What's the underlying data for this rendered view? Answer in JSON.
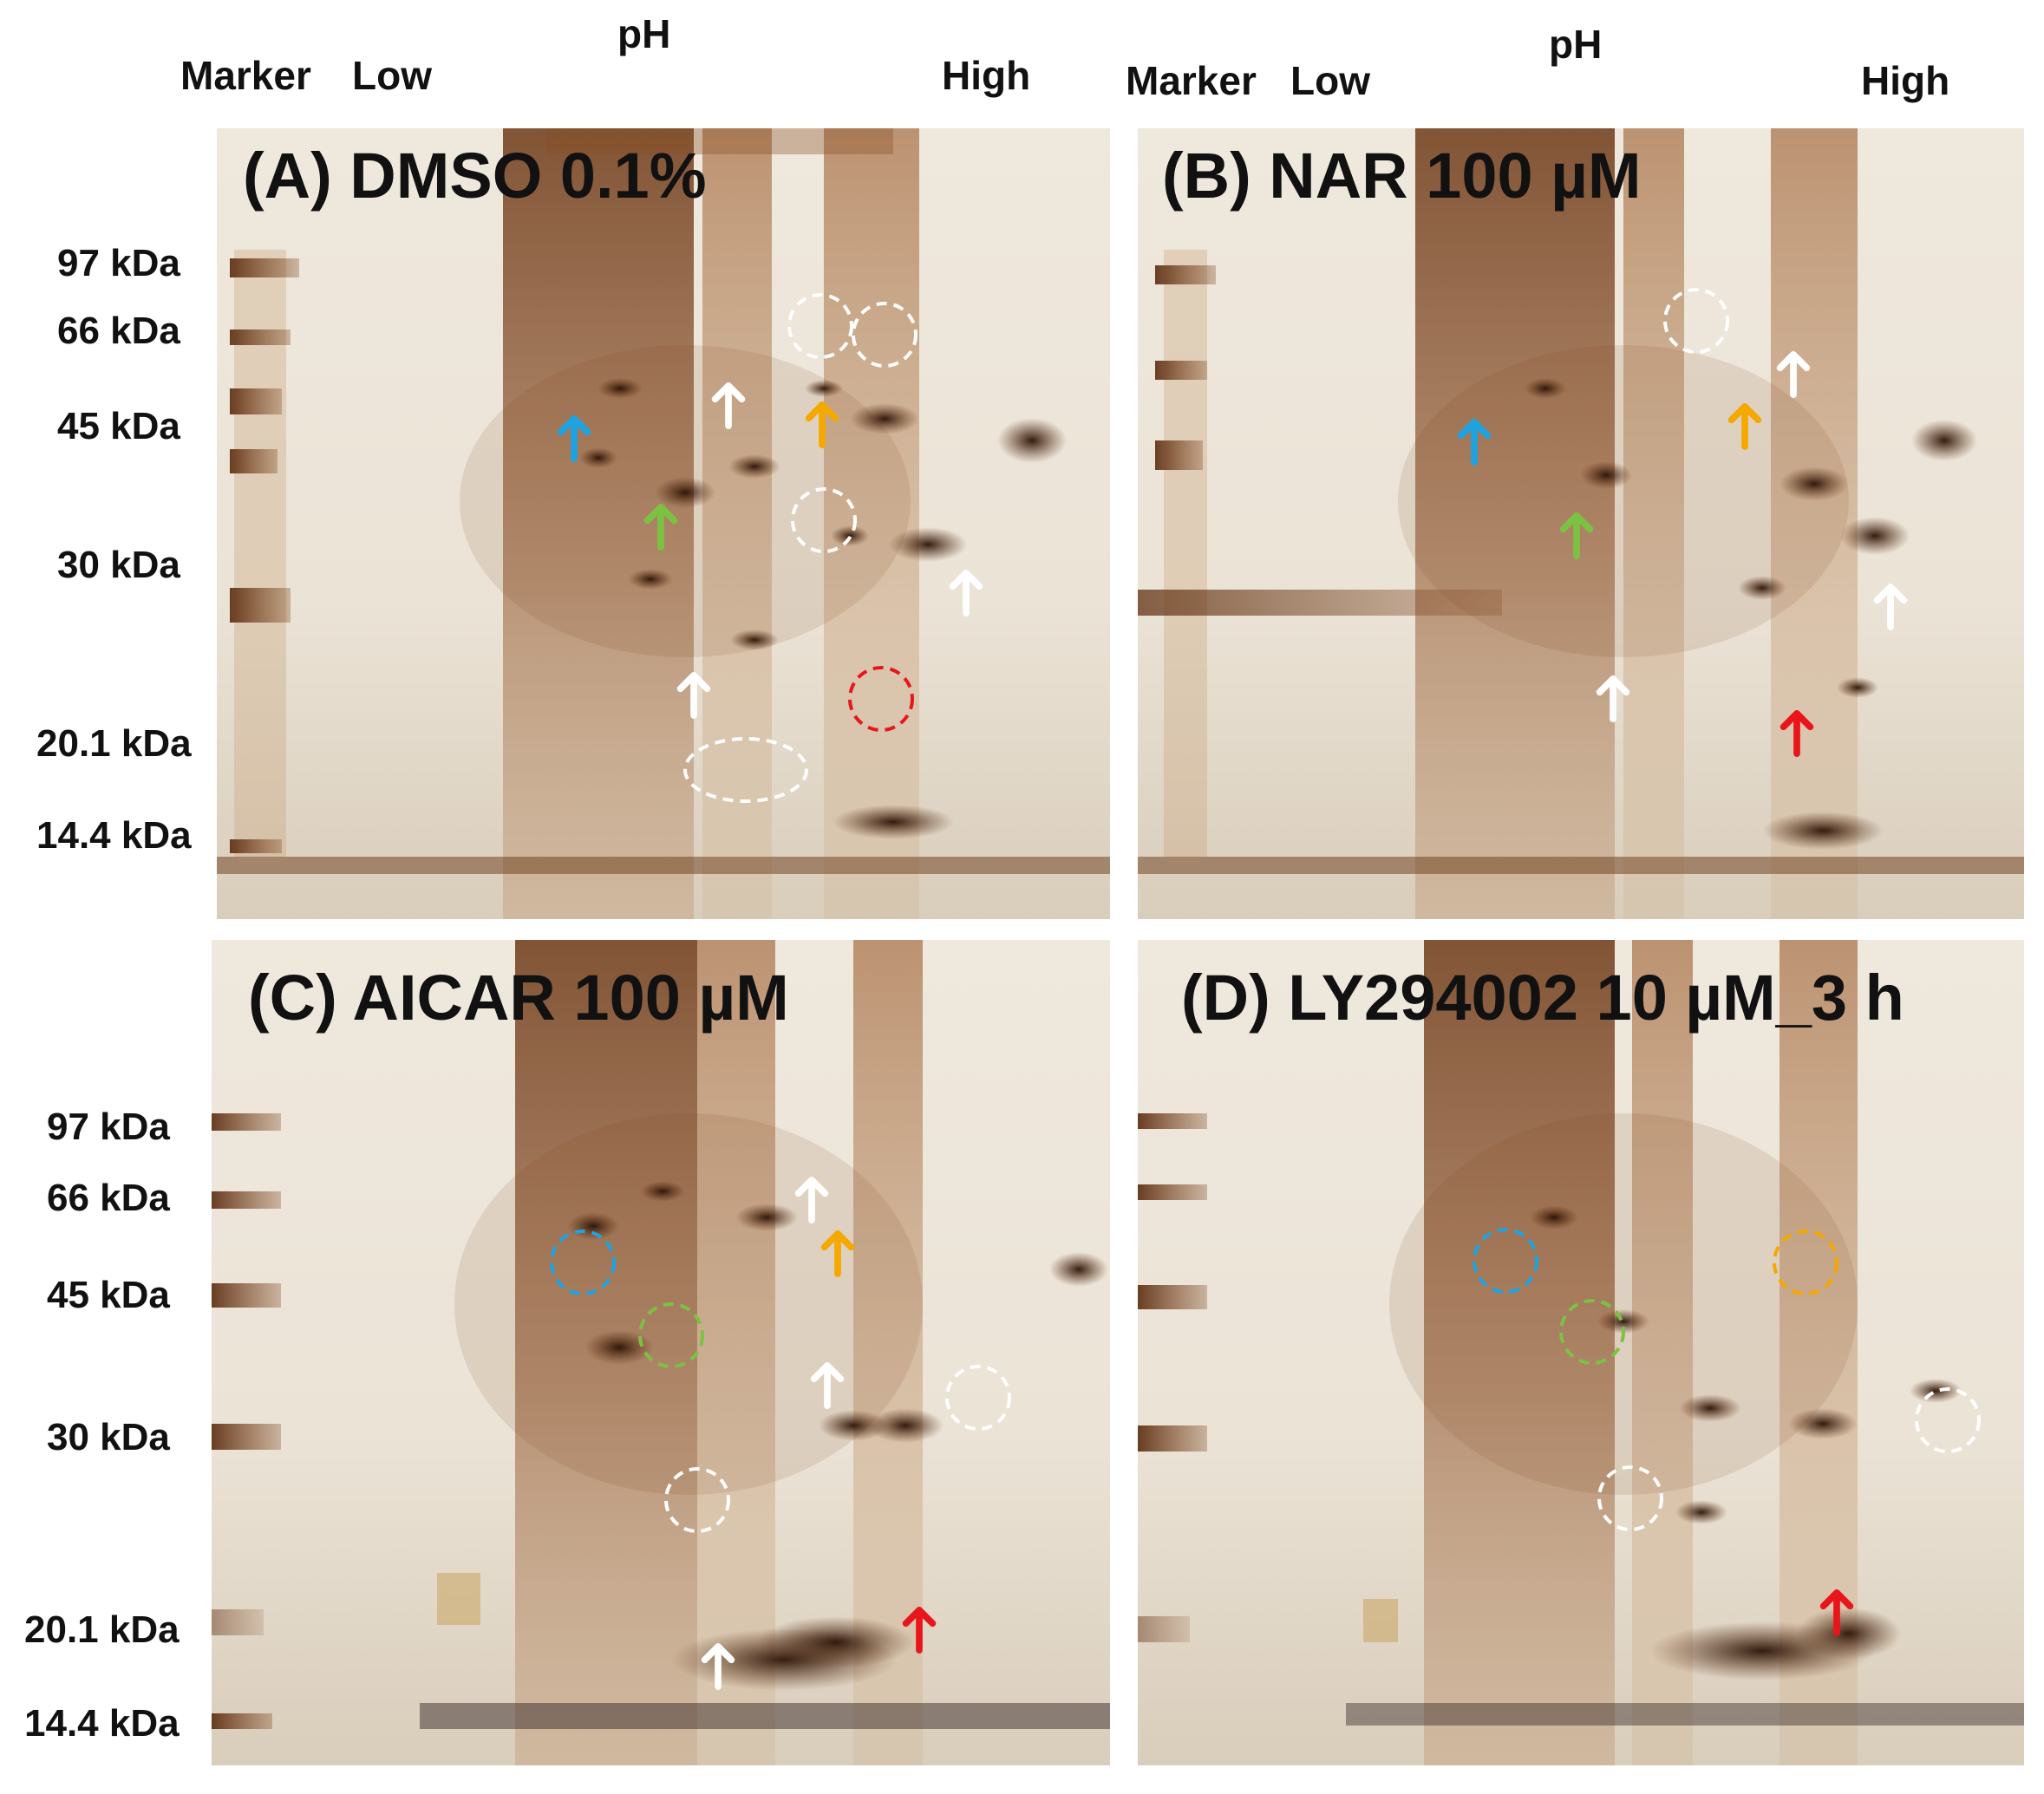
{
  "header_left": {
    "marker": "Marker",
    "low": "Low",
    "ph": "pH",
    "high": "High"
  },
  "header_right": {
    "marker": "Marker",
    "low": "Low",
    "ph": "pH",
    "high": "High"
  },
  "panels": {
    "A": {
      "title": "(A) DMSO  0.1%"
    },
    "B": {
      "title": "(B) NAR 100 µM"
    },
    "C": {
      "title": "(C) AICAR 100 µM"
    },
    "D": {
      "title": "(D) LY294002 10 µM_3 h"
    }
  },
  "mw_top": [
    "97 kDa",
    "66 kDa",
    "45 kDa",
    "30 kDa",
    "20.1 kDa",
    "14.4 kDa"
  ],
  "mw_bottom": [
    "97 kDa",
    "66 kDa",
    "45 kDa",
    "30 kDa",
    "20.1 kDa",
    "14.4 kDa"
  ],
  "colors": {
    "blue": "#1fa3e0",
    "green": "#7cc242",
    "orange": "#f5a800",
    "red": "#e8161b",
    "white": "#ffffff"
  }
}
